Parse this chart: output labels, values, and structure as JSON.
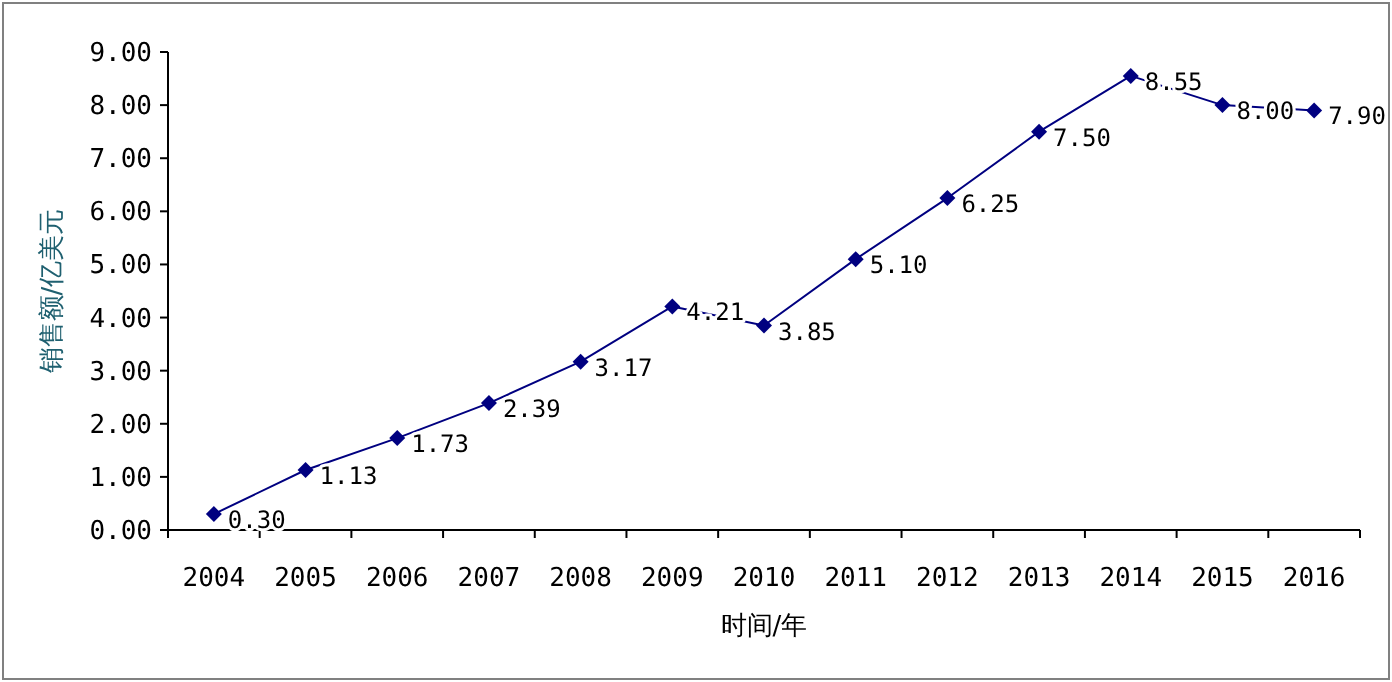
{
  "chart_data": {
    "type": "line",
    "xlabel": "时间/年",
    "ylabel": "销售额/亿美元",
    "categories": [
      "2004",
      "2005",
      "2006",
      "2007",
      "2008",
      "2009",
      "2010",
      "2011",
      "2012",
      "2013",
      "2014",
      "2015",
      "2016"
    ],
    "series": [
      {
        "color": "#000080",
        "values": [
          0.3,
          1.13,
          1.73,
          2.39,
          3.17,
          4.21,
          3.85,
          5.1,
          6.25,
          7.5,
          8.55,
          8.0,
          7.9
        ],
        "value_labels": [
          "0.30",
          "1.13",
          "1.73",
          "2.39",
          "3.17",
          "4.21",
          "3.85",
          "5.10",
          "6.25",
          "7.50",
          "8.55",
          "8.00",
          "7.90"
        ]
      }
    ],
    "ylim": [
      0,
      9
    ],
    "yticks": [
      {
        "value": 0,
        "label": "0.00"
      },
      {
        "value": 1,
        "label": "1.00"
      },
      {
        "value": 2,
        "label": "2.00"
      },
      {
        "value": 3,
        "label": "3.00"
      },
      {
        "value": 4,
        "label": "4.00"
      },
      {
        "value": 5,
        "label": "5.00"
      },
      {
        "value": 6,
        "label": "6.00"
      },
      {
        "value": 7,
        "label": "7.00"
      },
      {
        "value": 8,
        "label": "8.00"
      },
      {
        "value": 9,
        "label": "9.00"
      }
    ],
    "marker": "diamond",
    "line_style": "solid"
  }
}
